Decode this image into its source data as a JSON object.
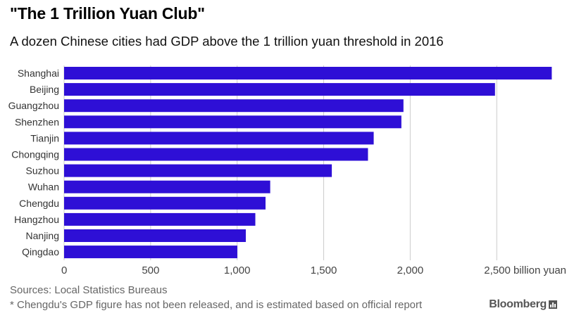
{
  "header": {
    "title": "\"The 1 Trillion Yuan Club\"",
    "subtitle": "A dozen Chinese cities had GDP above the 1 trillion yuan threshold in 2016"
  },
  "footer": {
    "source": "Sources: Local Statistics Bureaus",
    "note": "* Chengdu's GDP figure has not been released, and is estimated based on official report",
    "brand": "Bloomberg",
    "brand_icon": "bar-chart-icon"
  },
  "colors": {
    "bar": "#2e0fd6",
    "grid": "#cccccc",
    "tick_text": "#444444",
    "label_text": "#333333"
  },
  "chart_data": {
    "type": "bar",
    "orientation": "horizontal",
    "title": "\"The 1 Trillion Yuan Club\"",
    "subtitle": "A dozen Chinese cities had GDP above the 1 trillion yuan threshold in 2016",
    "categories": [
      "Shanghai",
      "Beijing",
      "Guangzhou",
      "Shenzhen",
      "Tianjin",
      "Chongqing",
      "Suzhou",
      "Wuhan",
      "Chengdu",
      "Hangzhou",
      "Nanjing",
      "Qingdao"
    ],
    "values": [
      2818,
      2490,
      1961,
      1949,
      1789,
      1756,
      1547,
      1191,
      1164,
      1105,
      1050,
      1001
    ],
    "xlabel": "",
    "ylabel": "",
    "xlim": [
      0,
      2800
    ],
    "ticks": [
      0,
      500,
      1000,
      1500,
      2000,
      2500
    ],
    "tick_labels": [
      "0",
      "500",
      "1,000",
      "1,500",
      "2,000",
      "2,500 billion yuan"
    ],
    "grid": true
  }
}
